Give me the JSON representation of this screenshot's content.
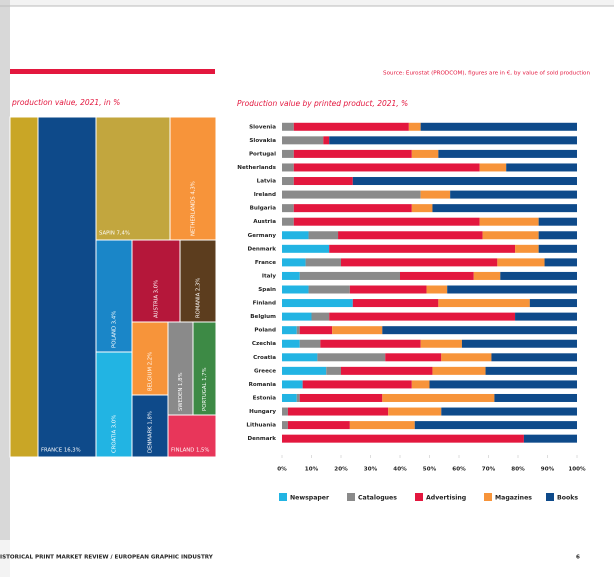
{
  "header": {
    "source": "Source: Eurostat (PRODCOM), figures are in €, by value of sold production"
  },
  "treemap": {
    "title": "production value, 2021, in %",
    "tiles": [
      "",
      "FRANCE 16,3%",
      "SAPIN 7,4%",
      "NETHERLANDS 4,3%",
      "POLAND 3,4%",
      "AUSTRIA 3,0%",
      "ROMANIA 2,3%",
      "CROATIA 3,0%",
      "BELGIUM 2,2%",
      "SWEDEN 1,8%",
      "PORTUGAL 1,7%",
      "DENMARK 1,8%",
      "FINLAND 1,5%"
    ]
  },
  "chart_data": {
    "type": "stacked-barh",
    "title": "Production value by printed product, 2021, %",
    "categories": [
      "Slovenia",
      "Slovakia",
      "Portugal",
      "Netherlands",
      "Latvia",
      "Ireland",
      "Bulgaria",
      "Austria",
      "Germany",
      "Denmark",
      "France",
      "Italy",
      "Spain",
      "Finland",
      "Belgium",
      "Poland",
      "Czechia",
      "Croatia",
      "Greece",
      "Romania",
      "Estonia",
      "Hungary",
      "Lithuania",
      "Denmark"
    ],
    "series": [
      {
        "name": "Newspaper",
        "color": "#22b4e3",
        "values": [
          0,
          0,
          0,
          0,
          0,
          0,
          0,
          0,
          9,
          16,
          8,
          6,
          9,
          24,
          10,
          5,
          6,
          12,
          15,
          7,
          5,
          0,
          0,
          0
        ]
      },
      {
        "name": "Catalogues",
        "color": "#8a8a8a",
        "values": [
          4,
          14,
          4,
          4,
          4,
          47,
          4,
          4,
          10,
          0,
          12,
          34,
          14,
          0,
          6,
          1,
          7,
          23,
          5,
          0,
          1,
          2,
          2,
          0
        ]
      },
      {
        "name": "Advertising",
        "color": "#e3173e",
        "values": [
          39,
          2,
          40,
          63,
          20,
          0,
          40,
          63,
          49,
          63,
          53,
          25,
          26,
          29,
          63,
          11,
          34,
          19,
          31,
          37,
          28,
          34,
          21,
          82
        ]
      },
      {
        "name": "Magazines",
        "color": "#f7943a",
        "values": [
          4,
          0,
          9,
          9,
          0,
          10,
          7,
          20,
          19,
          8,
          16,
          9,
          7,
          31,
          0,
          17,
          14,
          17,
          18,
          6,
          38,
          18,
          22,
          0
        ]
      },
      {
        "name": "Books",
        "color": "#0e4a8a",
        "values": [
          53,
          84,
          47,
          24,
          76,
          43,
          49,
          13,
          13,
          13,
          11,
          26,
          44,
          16,
          21,
          66,
          39,
          29,
          31,
          50,
          28,
          46,
          55,
          18
        ]
      }
    ],
    "xlim": [
      0,
      100
    ],
    "xticks": [
      {
        "value": 0,
        "label": "0%"
      },
      {
        "value": 10,
        "label": "10%"
      },
      {
        "value": 20,
        "label": "20%"
      },
      {
        "value": 30,
        "label": "30%"
      },
      {
        "value": 40,
        "label": "40%"
      },
      {
        "value": 50,
        "label": "50%"
      },
      {
        "value": 60,
        "label": "60%"
      },
      {
        "value": 70,
        "label": "70%"
      },
      {
        "value": 80,
        "label": "80%"
      },
      {
        "value": 90,
        "label": "90%"
      },
      {
        "value": 100,
        "label": "100%"
      }
    ]
  },
  "footer": {
    "text": "ISTORICAL PRINT MARKET REVIEW / EUROPEAN GRAPHIC INDUSTRY",
    "page": "6"
  }
}
